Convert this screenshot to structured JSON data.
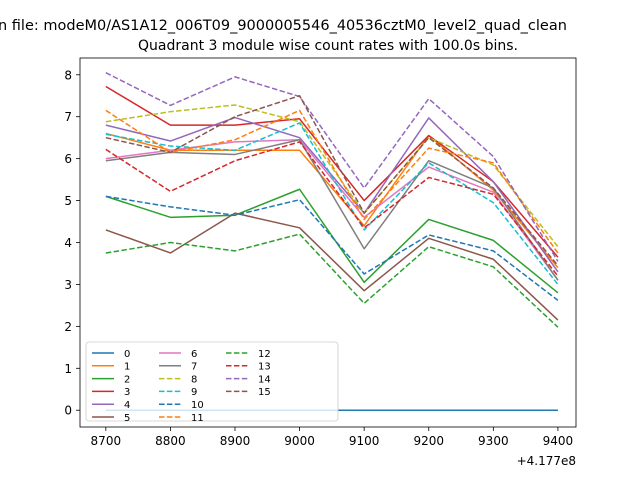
{
  "figure": {
    "suptitle": "n file: modeM0/AS1A12_006T09_9000005546_40536cztM0_level2_quad_clean",
    "title": "Quadrant 3 module wise count rates with 100.0s bins.",
    "offset_text": "+4.177e8"
  },
  "chart_data": {
    "type": "line",
    "title": "Quadrant 3 module wise count rates with 100.0s bins.",
    "xlabel": "",
    "ylabel": "",
    "x_offset": 417700000,
    "x": [
      8700,
      8800,
      8900,
      9000,
      9100,
      9200,
      9300,
      9400
    ],
    "xlim": [
      8660,
      9428
    ],
    "ylim": [
      -0.4,
      8.4
    ],
    "xticks": [
      "8700",
      "8800",
      "8900",
      "9000",
      "9100",
      "9200",
      "9300",
      "9400"
    ],
    "yticks": [
      "0",
      "1",
      "2",
      "3",
      "4",
      "5",
      "6",
      "7",
      "8"
    ],
    "legend_position": "lower-left",
    "series": [
      {
        "name": "0",
        "color": "#1f77b4",
        "dashed": false,
        "values": [
          0,
          0,
          0,
          0,
          0,
          0,
          0,
          0
        ]
      },
      {
        "name": "1",
        "color": "#ff7f0e",
        "dashed": false,
        "values": [
          6.6,
          6.2,
          6.2,
          6.2,
          4.4,
          6.55,
          5.25,
          3.4
        ]
      },
      {
        "name": "2",
        "color": "#2ca02c",
        "dashed": false,
        "values": [
          5.1,
          4.6,
          4.65,
          5.27,
          3.05,
          4.55,
          4.05,
          2.8
        ]
      },
      {
        "name": "3",
        "color": "#d62728",
        "dashed": false,
        "values": [
          7.72,
          6.8,
          6.8,
          6.95,
          5.0,
          6.55,
          5.45,
          3.65
        ]
      },
      {
        "name": "4",
        "color": "#9467bd",
        "dashed": false,
        "values": [
          6.8,
          6.42,
          6.98,
          6.5,
          4.7,
          6.97,
          5.45,
          3.3
        ]
      },
      {
        "name": "5",
        "color": "#8c564b",
        "dashed": false,
        "values": [
          4.3,
          3.75,
          4.7,
          4.35,
          2.85,
          4.1,
          3.6,
          2.15
        ]
      },
      {
        "name": "6",
        "color": "#e377c2",
        "dashed": false,
        "values": [
          6.0,
          6.2,
          6.4,
          6.45,
          4.6,
          5.8,
          5.2,
          3.1
        ]
      },
      {
        "name": "7",
        "color": "#7f7f7f",
        "dashed": false,
        "values": [
          5.95,
          6.15,
          6.1,
          6.45,
          3.85,
          5.95,
          5.3,
          3.1
        ]
      },
      {
        "name": "8",
        "color": "#bcbd22",
        "dashed": true,
        "values": [
          6.88,
          7.12,
          7.28,
          6.88,
          4.7,
          6.5,
          5.85,
          3.9
        ]
      },
      {
        "name": "9",
        "color": "#17becf",
        "dashed": true,
        "values": [
          6.58,
          6.3,
          6.2,
          6.85,
          4.3,
          5.9,
          4.95,
          3.0
        ]
      },
      {
        "name": "10",
        "color": "#1f77b4",
        "dashed": true,
        "values": [
          5.1,
          4.85,
          4.65,
          5.02,
          3.25,
          4.18,
          3.8,
          2.62
        ]
      },
      {
        "name": "11",
        "color": "#ff7f0e",
        "dashed": true,
        "values": [
          7.15,
          6.15,
          6.45,
          7.15,
          4.55,
          6.25,
          5.9,
          3.75
        ]
      },
      {
        "name": "12",
        "color": "#2ca02c",
        "dashed": true,
        "values": [
          3.75,
          4.0,
          3.8,
          4.2,
          2.55,
          3.9,
          3.42,
          1.98
        ]
      },
      {
        "name": "13",
        "color": "#d62728",
        "dashed": true,
        "values": [
          6.22,
          5.22,
          5.95,
          6.4,
          4.35,
          5.55,
          5.15,
          3.2
        ]
      },
      {
        "name": "14",
        "color": "#9467bd",
        "dashed": true,
        "values": [
          8.05,
          7.27,
          7.95,
          7.48,
          5.3,
          7.43,
          6.05,
          3.55
        ]
      },
      {
        "name": "15",
        "color": "#8c564b",
        "dashed": true,
        "values": [
          6.5,
          6.15,
          7.0,
          7.5,
          4.7,
          6.5,
          5.3,
          3.45
        ]
      }
    ]
  }
}
